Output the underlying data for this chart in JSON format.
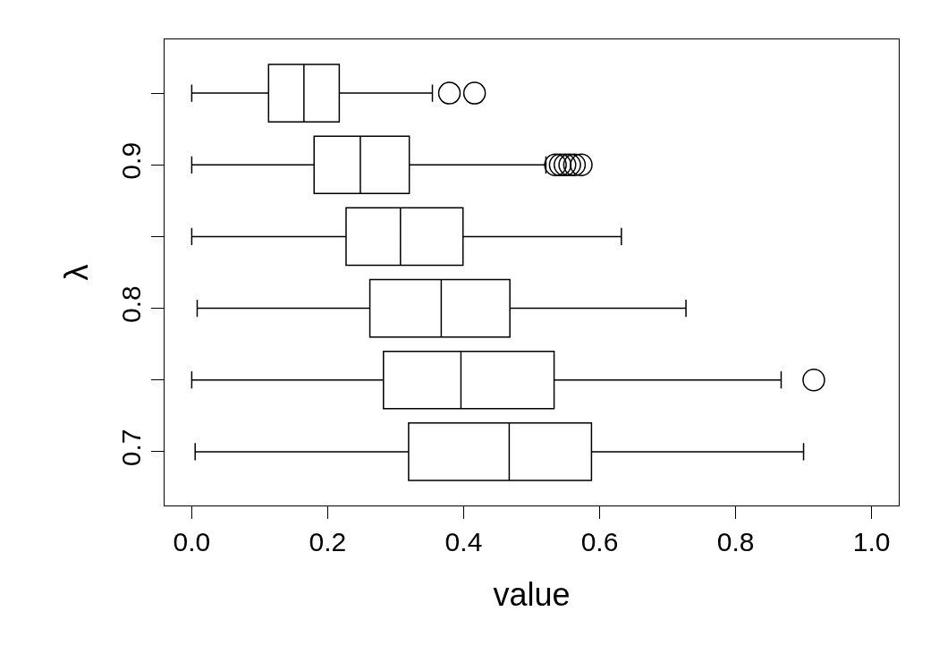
{
  "chart_data": {
    "type": "box",
    "orientation": "horizontal",
    "xlabel": "value",
    "ylabel": "λ",
    "categories": [
      null,
      "0.9",
      null,
      "0.8",
      null,
      "0.7"
    ],
    "boxes": [
      {
        "low": 0.0,
        "q1": 0.113,
        "median": 0.165,
        "q3": 0.217,
        "high": 0.354,
        "outliers": [
          0.379,
          0.416
        ]
      },
      {
        "low": 0.0,
        "q1": 0.18,
        "median": 0.248,
        "q3": 0.32,
        "high": 0.521,
        "outliers": [
          0.535,
          0.542,
          0.549,
          0.556,
          0.563,
          0.573
        ]
      },
      {
        "low": 0.0,
        "q1": 0.227,
        "median": 0.307,
        "q3": 0.399,
        "high": 0.632
      },
      {
        "low": 0.008,
        "q1": 0.262,
        "median": 0.367,
        "q3": 0.468,
        "high": 0.727
      },
      {
        "low": 0.0,
        "q1": 0.282,
        "median": 0.396,
        "q3": 0.533,
        "high": 0.867,
        "outliers": [
          0.915
        ]
      },
      {
        "low": 0.005,
        "q1": 0.319,
        "median": 0.467,
        "q3": 0.588,
        "high": 0.9
      }
    ],
    "xlim": [
      -0.04,
      1.04
    ],
    "xticks": [
      {
        "value": 0,
        "label": "0.0"
      },
      0.2,
      0.4,
      0.6,
      0.8,
      {
        "value": 1,
        "label": "1.0"
      }
    ]
  }
}
